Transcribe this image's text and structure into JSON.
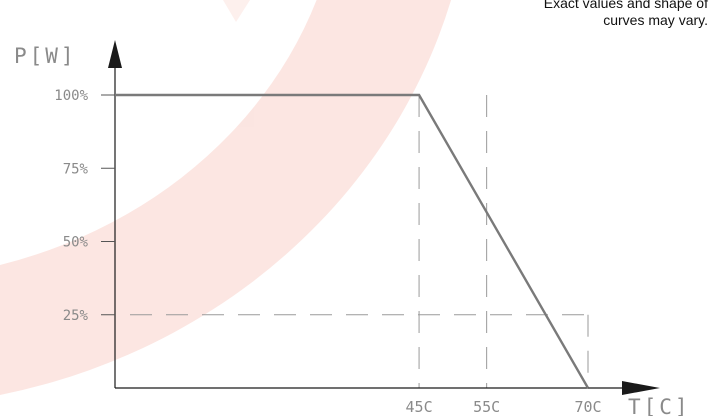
{
  "note": {
    "line1": "Exact values and shape of",
    "line2": "curves may vary."
  },
  "colors": {
    "axis": "#1a1a1a",
    "curve": "#7a7a7a",
    "dash": "#9a9a9a",
    "label": "#8a8a8a",
    "watermark": "#e83f1f"
  },
  "watermark_icon": "red-arc-logo",
  "chart_data": {
    "type": "line",
    "title": "",
    "xlabel": "T[C]",
    "ylabel": "P[W]",
    "xlim": [
      0,
      70
    ],
    "ylim": [
      0,
      100
    ],
    "x_tick_labels": [
      "45C",
      "55C",
      "70C"
    ],
    "y_tick_labels": [
      "100%",
      "75%",
      "50%",
      "25%"
    ],
    "y_ticks": [
      100,
      75,
      50,
      25
    ],
    "grid": false,
    "series": [
      {
        "x": [
          0,
          45,
          70
        ],
        "y": [
          100,
          100,
          0
        ]
      }
    ]
  }
}
